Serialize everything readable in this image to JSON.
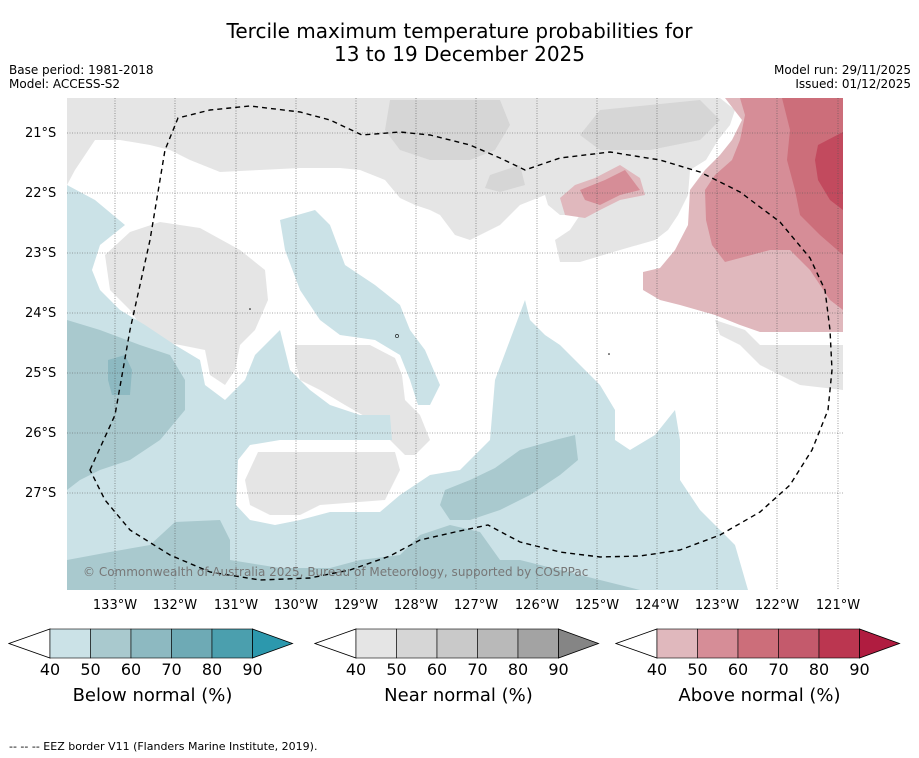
{
  "title": {
    "line1": "Tercile maximum temperature probabilities for",
    "line2": "13 to 19 December 2025"
  },
  "meta": {
    "base_period": "Base period: 1981-2018",
    "model": "Model: ACCESS-S2",
    "model_run": "Model run: 29/11/2025",
    "issued": "Issued: 01/12/2025"
  },
  "map": {
    "lat_labels": [
      "21°S",
      "22°S",
      "23°S",
      "24°S",
      "25°S",
      "26°S",
      "27°S"
    ],
    "lon_labels": [
      "133°W",
      "132°W",
      "131°W",
      "130°W",
      "129°W",
      "128°W",
      "127°W",
      "126°W",
      "125°W",
      "124°W",
      "123°W",
      "122°W",
      "121°W"
    ],
    "copyright": "© Commonwealth of Australia 2025, Bureau of Meteorology, supported by COSPPac",
    "colors": {
      "below_40": "#cbe2e7",
      "below_50": "#a9c9ce",
      "below_60": "#8db9c1",
      "near_40": "#e5e5e5",
      "near_50": "#d6d6d6",
      "above_40": "#e0b8bd",
      "above_50": "#d68d97",
      "above_60": "#cc6e7a",
      "above_70": "#c24a5e"
    }
  },
  "colorbars": [
    {
      "label": "Below normal (%)",
      "ticks": [
        "40",
        "50",
        "60",
        "70",
        "80",
        "90"
      ],
      "colors": [
        "#cbe2e7",
        "#a9c9ce",
        "#8db9c1",
        "#6eaab5",
        "#4b9fae",
        "#2c98ad"
      ]
    },
    {
      "label": "Near normal (%)",
      "ticks": [
        "40",
        "50",
        "60",
        "70",
        "80",
        "90"
      ],
      "colors": [
        "#e5e5e5",
        "#d6d6d6",
        "#c9c9c9",
        "#b9b9b9",
        "#a3a3a3",
        "#858585"
      ]
    },
    {
      "label": "Above normal (%)",
      "ticks": [
        "40",
        "50",
        "60",
        "70",
        "80",
        "90"
      ],
      "colors": [
        "#e0b8bd",
        "#d68d97",
        "#cc6e7a",
        "#c45a6c",
        "#bb3650",
        "#b01c40"
      ]
    }
  ],
  "footnote": "--  --  -- EEZ border V11 (Flanders Marine Institute, 2019)."
}
